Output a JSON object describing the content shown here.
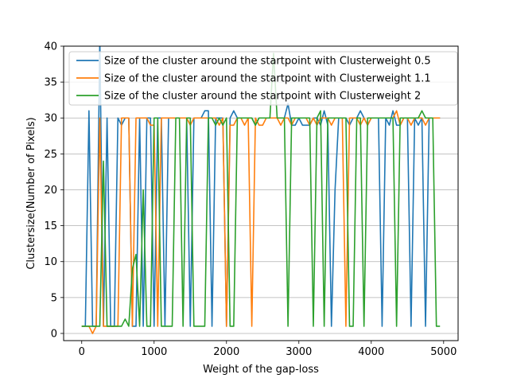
{
  "chart_data": {
    "type": "line",
    "title": "",
    "xlabel": "Weight of the gap-loss",
    "ylabel": "Clustersize(Number of Pixels)",
    "xlim": [
      -250,
      5200
    ],
    "ylim": [
      -1,
      40
    ],
    "xticks": [
      0,
      1000,
      2000,
      3000,
      4000,
      5000
    ],
    "yticks": [
      0,
      5,
      10,
      15,
      20,
      25,
      30,
      35,
      40
    ],
    "xtick_labels": [
      "0",
      "1000",
      "2000",
      "3000",
      "4000",
      "5000"
    ],
    "ytick_labels": [
      "0",
      "5",
      "10",
      "15",
      "20",
      "25",
      "30",
      "35",
      "40"
    ],
    "grid": "horizontal",
    "legend_position": "top-right",
    "x": [
      0,
      50,
      100,
      150,
      200,
      250,
      300,
      350,
      400,
      450,
      500,
      550,
      600,
      650,
      700,
      750,
      800,
      850,
      900,
      950,
      1000,
      1050,
      1100,
      1150,
      1200,
      1250,
      1300,
      1350,
      1400,
      1450,
      1500,
      1550,
      1600,
      1650,
      1700,
      1750,
      1800,
      1850,
      1900,
      1950,
      2000,
      2050,
      2100,
      2150,
      2200,
      2250,
      2300,
      2350,
      2400,
      2450,
      2500,
      2550,
      2600,
      2650,
      2700,
      2750,
      2800,
      2850,
      2900,
      2950,
      3000,
      3050,
      3100,
      3150,
      3200,
      3250,
      3300,
      3350,
      3400,
      3450,
      3500,
      3550,
      3600,
      3650,
      3700,
      3750,
      3800,
      3850,
      3900,
      3950,
      4000,
      4050,
      4100,
      4150,
      4200,
      4250,
      4300,
      4350,
      4400,
      4450,
      4500,
      4550,
      4600,
      4650,
      4700,
      4750,
      4800,
      4850,
      4900,
      4950
    ],
    "series": [
      {
        "name": "Size of the cluster around the startpoint with Clusterweight 0.5",
        "color": "#1f77b4",
        "values": [
          1,
          1,
          31,
          1,
          1,
          41,
          1,
          30,
          1,
          1,
          30,
          29,
          30,
          30,
          1,
          1,
          30,
          1,
          30,
          30,
          1,
          30,
          30,
          1,
          30,
          30,
          30,
          30,
          30,
          30,
          1,
          30,
          30,
          30,
          31,
          31,
          1,
          30,
          30,
          30,
          1,
          30,
          31,
          30,
          30,
          30,
          30,
          30,
          29,
          30,
          30,
          30,
          30,
          30,
          30,
          30,
          30,
          32,
          29,
          29,
          30,
          29,
          29,
          29,
          30,
          30,
          29,
          31,
          29,
          1,
          20,
          30,
          30,
          30,
          29,
          30,
          30,
          31,
          30,
          29,
          30,
          30,
          30,
          1,
          30,
          29,
          31,
          29,
          29,
          30,
          30,
          1,
          30,
          29,
          30,
          1,
          30,
          30,
          30,
          30
        ]
      },
      {
        "name": "Size of the cluster around the startpoint with Clusterweight 1.1",
        "color": "#ff7f0e",
        "values": [
          1,
          1,
          1,
          0,
          1,
          30,
          1,
          1,
          1,
          1,
          1,
          30,
          30,
          30,
          1,
          30,
          30,
          30,
          30,
          29,
          29,
          1,
          30,
          30,
          30,
          30,
          30,
          30,
          30,
          30,
          29,
          30,
          30,
          30,
          30,
          30,
          30,
          30,
          29,
          30,
          1,
          29,
          29,
          30,
          30,
          29,
          30,
          1,
          30,
          29,
          29,
          30,
          30,
          30,
          30,
          29,
          30,
          30,
          29,
          30,
          30,
          30,
          30,
          29,
          30,
          29,
          30,
          30,
          30,
          29,
          30,
          30,
          30,
          1,
          30,
          30,
          30,
          29,
          30,
          29,
          30,
          30,
          30,
          30,
          30,
          30,
          30,
          31,
          29,
          30,
          30,
          29,
          30,
          30,
          30,
          29,
          30,
          30,
          30,
          30
        ]
      },
      {
        "name": "Size of the cluster around the startpoint with Clusterweight 2",
        "color": "#2ca02c",
        "values": [
          1,
          1,
          1,
          1,
          1,
          1,
          24,
          1,
          1,
          1,
          1,
          1,
          2,
          1,
          9,
          11,
          1,
          20,
          1,
          1,
          30,
          30,
          1,
          1,
          1,
          1,
          30,
          30,
          1,
          30,
          30,
          1,
          1,
          1,
          1,
          30,
          30,
          29,
          30,
          29,
          30,
          1,
          1,
          30,
          30,
          30,
          30,
          30,
          29,
          30,
          30,
          30,
          30,
          39,
          30,
          30,
          30,
          1,
          30,
          30,
          30,
          30,
          30,
          30,
          1,
          30,
          31,
          1,
          30,
          30,
          30,
          30,
          30,
          30,
          1,
          1,
          30,
          30,
          1,
          30,
          30,
          30,
          30,
          30,
          30,
          30,
          30,
          1,
          30,
          30,
          30,
          30,
          30,
          30,
          31,
          30,
          30,
          30,
          1,
          1
        ]
      }
    ]
  }
}
